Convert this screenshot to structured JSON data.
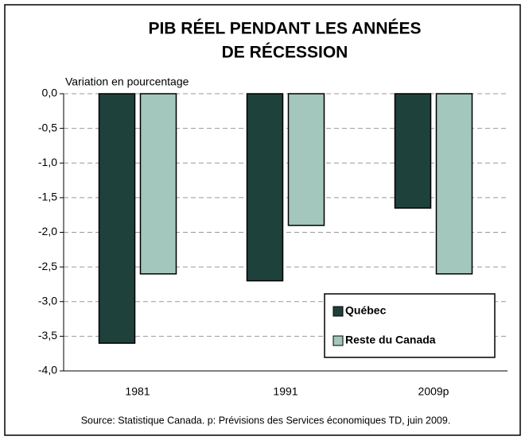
{
  "chart_data": {
    "type": "bar",
    "title": [
      "PIB RÉEL PENDANT LES ANNÉES",
      "DE RÉCESSION"
    ],
    "y_label": "Variation en pourcentage",
    "source": "Source: Statistique Canada. p: Prévisions des Services économiques TD, juin 2009.",
    "categories": [
      "1981",
      "1991",
      "2009p"
    ],
    "series": [
      {
        "name": "Québec",
        "color": "#1f413b",
        "values": [
          -3.6,
          -2.7,
          -1.65
        ]
      },
      {
        "name": "Reste du Canada",
        "color": "#a3c6bd",
        "values": [
          -2.6,
          -1.9,
          -2.6
        ]
      }
    ],
    "ylim": [
      -4,
      0
    ],
    "yticks": [
      {
        "value": 0,
        "label": "0,0"
      },
      {
        "value": -0.5,
        "label": "-0,5"
      },
      {
        "value": -1,
        "label": "-1,0"
      },
      {
        "value": -1.5,
        "label": "-1,5"
      },
      {
        "value": -2,
        "label": "-2,0"
      },
      {
        "value": -2.5,
        "label": "-2,5"
      },
      {
        "value": -3,
        "label": "-3,0"
      },
      {
        "value": -3.5,
        "label": "-3,5"
      },
      {
        "value": -4,
        "label": "-4,0"
      }
    ],
    "grid": true,
    "legend": "lower right"
  }
}
